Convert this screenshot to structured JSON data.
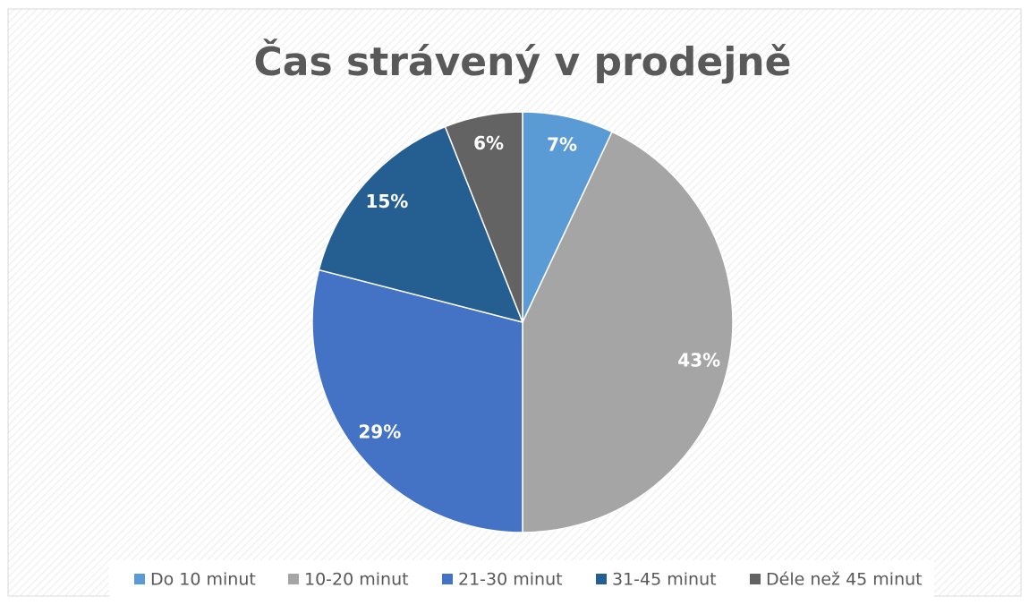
{
  "chart_data": {
    "type": "pie",
    "title": "Čas strávený v prodejně",
    "categories": [
      "Do 10 minut",
      "10-20 minut",
      "21-30 minut",
      "31-45 minut",
      "Déle než 45 minut"
    ],
    "values": [
      7,
      43,
      29,
      15,
      6
    ],
    "value_labels": [
      "7%",
      "43%",
      "29%",
      "15%",
      "6%"
    ],
    "colors": [
      "#5b9bd5",
      "#a5a5a5",
      "#4472c4",
      "#255e91",
      "#636363"
    ],
    "legend": "bottom"
  }
}
